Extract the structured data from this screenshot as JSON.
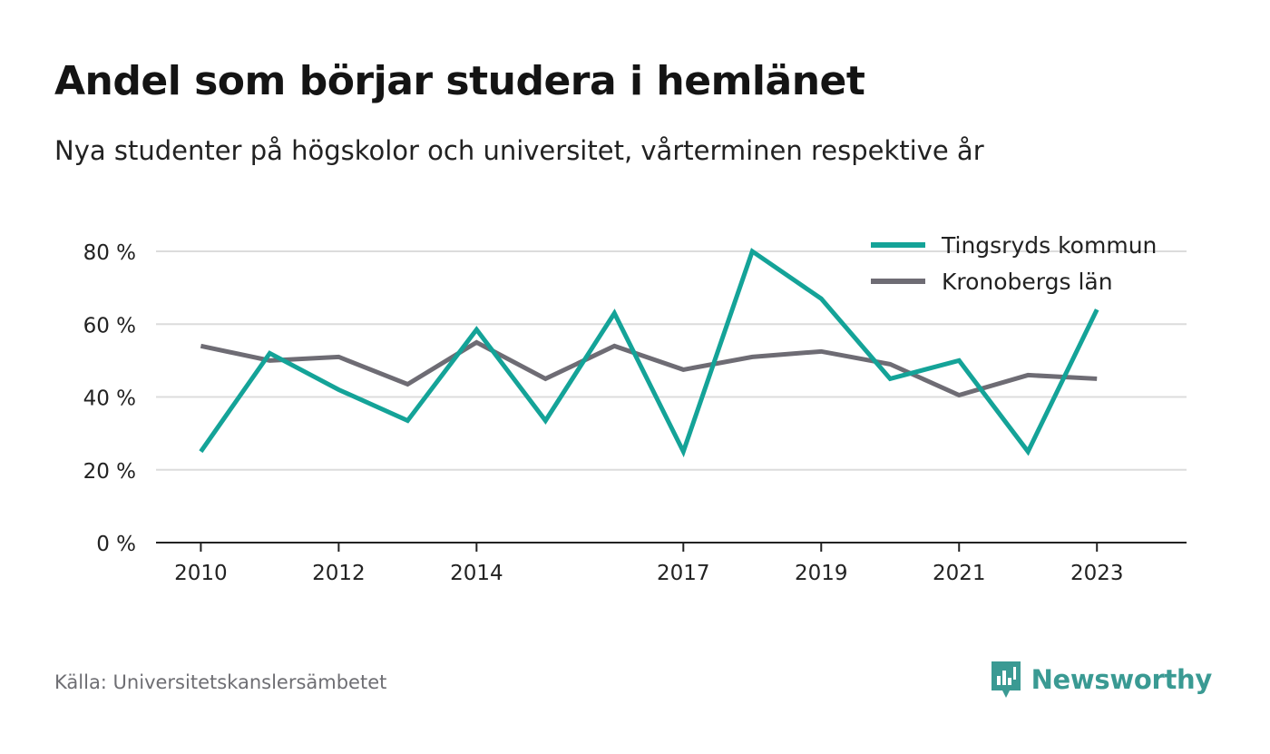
{
  "title": "Andel som börjar studera i hemlänet",
  "subtitle": "Nya studenter på högskolor och universitet, vårterminen respektive år",
  "source": "Källa: Universitetskanslersämbetet",
  "brand": {
    "name": "Newsworthy",
    "icon": "newsworthy-logo-icon",
    "color": "#3a9a93"
  },
  "chart_data": {
    "type": "line",
    "title": "Andel som börjar studera i hemlänet",
    "subtitle": "Nya studenter på högskolor och universitet, vårterminen respektive år",
    "x": [
      2010,
      2011,
      2012,
      2013,
      2014,
      2015,
      2016,
      2017,
      2018,
      2019,
      2020,
      2021,
      2022,
      2023
    ],
    "x_ticks": [
      2010,
      2012,
      2014,
      2017,
      2019,
      2021,
      2023
    ],
    "x_tick_labels": [
      "2010",
      "2012",
      "2014",
      "2017",
      "2019",
      "2021",
      "2023"
    ],
    "ylim": [
      0,
      80
    ],
    "y_ticks": [
      0,
      20,
      40,
      60,
      80
    ],
    "y_tick_labels": [
      "0 %",
      "20 %",
      "40 %",
      "60 %",
      "80 %"
    ],
    "grid": true,
    "legend_position": "top-right",
    "series": [
      {
        "name": "Tingsryds kommun",
        "color": "#14a398",
        "values": [
          25,
          52,
          42,
          33.5,
          58.5,
          33.5,
          63,
          25,
          80,
          67,
          45,
          50,
          25,
          64
        ]
      },
      {
        "name": "Kronobergs län",
        "color": "#6e6c74",
        "values": [
          54,
          50,
          51,
          43.5,
          55,
          45,
          54,
          47.5,
          51,
          52.5,
          49,
          40.5,
          46,
          45
        ]
      }
    ]
  }
}
